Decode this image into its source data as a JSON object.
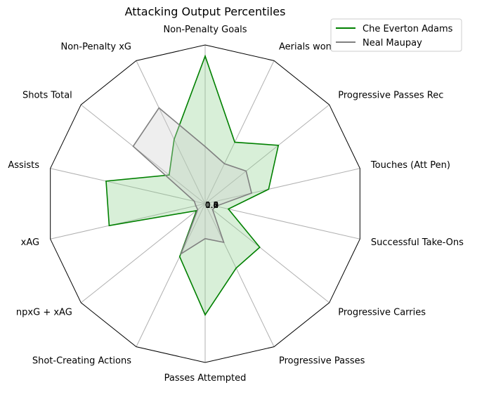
{
  "chart_data": {
    "type": "radar",
    "title": "Attacking Output Percentiles",
    "categories": [
      "Non-Penalty Goals",
      "Aerials won",
      "Progressive Passes Rec",
      "Touches (Att Pen)",
      "Successful Take-Ons",
      "Progressive Carries",
      "Progressive Passes",
      "Passes Attempted",
      "Shot-Creating Actions",
      "npxG + xAG",
      "xAG",
      "Assists",
      "Shots Total",
      "Non-Penalty xG"
    ],
    "rlim": [
      0,
      1
    ],
    "center_tick_labels": [
      "0.0",
      "0.2",
      "0.4",
      "0.6",
      "0.8",
      "1.0"
    ],
    "grid": true,
    "legend_position": "top-right",
    "series": [
      {
        "name": "Che Everton Adams",
        "color": "#008000",
        "fill_color": "#90d090",
        "values": [
          0.93,
          0.43,
          0.59,
          0.41,
          0.15,
          0.44,
          0.45,
          0.7,
          0.37,
          0.07,
          0.62,
          0.64,
          0.29,
          0.45
        ]
      },
      {
        "name": "Neal Maupay",
        "color": "#808080",
        "fill_color": "#cfcfcf",
        "values": [
          0.36,
          0.28,
          0.33,
          0.3,
          0.07,
          0.06,
          0.27,
          0.22,
          0.35,
          0.06,
          0.06,
          0.07,
          0.58,
          0.67
        ]
      }
    ]
  }
}
